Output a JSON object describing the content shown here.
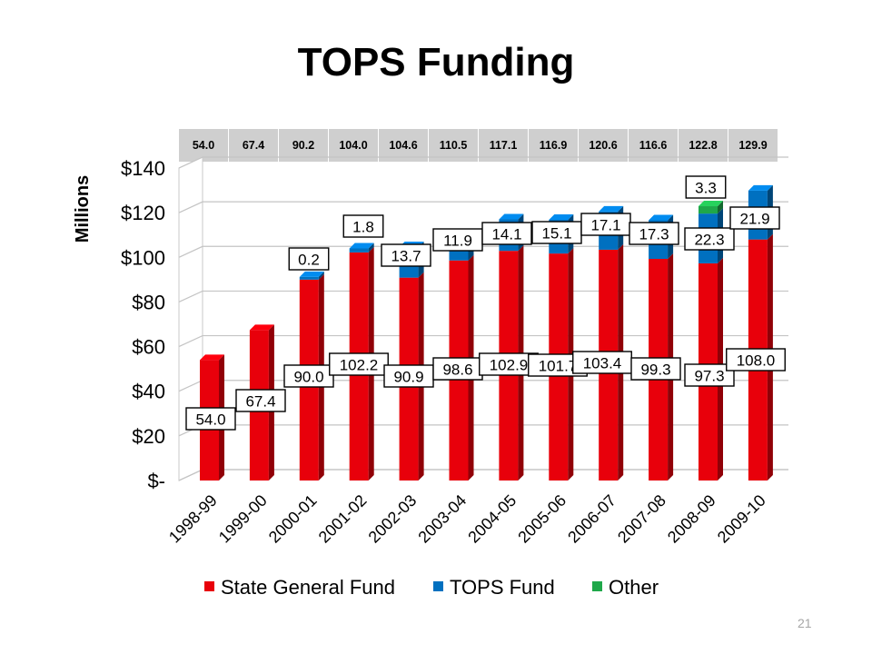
{
  "title": "TOPS Funding",
  "page_number": "21",
  "colors": {
    "State General Fund": "#e8000b",
    "TOPS Fund": "#0070c0",
    "Other": "#1fa84a"
  },
  "chart_data": {
    "type": "bar",
    "stacked": true,
    "categories": [
      "1998-99",
      "1999-00",
      "2000-01",
      "2001-02",
      "2002-03",
      "2003-04",
      "2004-05",
      "2005-06",
      "2006-07",
      "2007-08",
      "2008-09",
      "2009-10"
    ],
    "series": [
      {
        "name": "State General Fund",
        "values": [
          54.0,
          67.4,
          90.0,
          102.2,
          90.9,
          98.6,
          102.9,
          101.7,
          103.4,
          99.3,
          97.3,
          108.0
        ]
      },
      {
        "name": "TOPS Fund",
        "values": [
          0,
          0,
          0.2,
          1.8,
          13.7,
          11.9,
          14.1,
          15.1,
          17.1,
          17.3,
          22.3,
          21.9
        ]
      },
      {
        "name": "Other",
        "values": [
          0,
          0,
          0,
          0,
          0,
          0,
          0,
          0,
          0,
          0,
          3.3,
          0
        ]
      }
    ],
    "segment_labels": {
      "State General Fund": [
        "54.0",
        "67.4",
        "90.0",
        "102.2",
        "90.9",
        "98.6",
        "102.9",
        "101.7",
        "103.4",
        "99.3",
        "97.3",
        "108.0"
      ],
      "TOPS Fund": [
        "",
        "",
        "0.2",
        "1.8",
        "13.7",
        "11.9",
        "14.1",
        "15.1",
        "17.1",
        "17.3",
        "22.3",
        "21.9"
      ],
      "Other": [
        "",
        "",
        "",
        "",
        "",
        "",
        "",
        "",
        "",
        "",
        "3.3",
        ""
      ]
    },
    "totals": [
      "54.0",
      "67.4",
      "90.2",
      "104.0",
      "104.6",
      "110.5",
      "117.1",
      "116.9",
      "120.6",
      "116.6",
      "122.8",
      "129.9"
    ],
    "ylabel": "Millions",
    "ylim": [
      0,
      140
    ],
    "yticks": [
      {
        "value": 0,
        "label": "$-"
      },
      {
        "value": 20,
        "label": "$20"
      },
      {
        "value": 40,
        "label": "$40"
      },
      {
        "value": 60,
        "label": "$60"
      },
      {
        "value": 80,
        "label": "$80"
      },
      {
        "value": 100,
        "label": "$100"
      },
      {
        "value": 120,
        "label": "$120"
      },
      {
        "value": 140,
        "label": "$140"
      }
    ],
    "grid": true,
    "legend_position": "bottom",
    "legend": [
      "State General Fund",
      "TOPS Fund",
      "Other"
    ]
  }
}
